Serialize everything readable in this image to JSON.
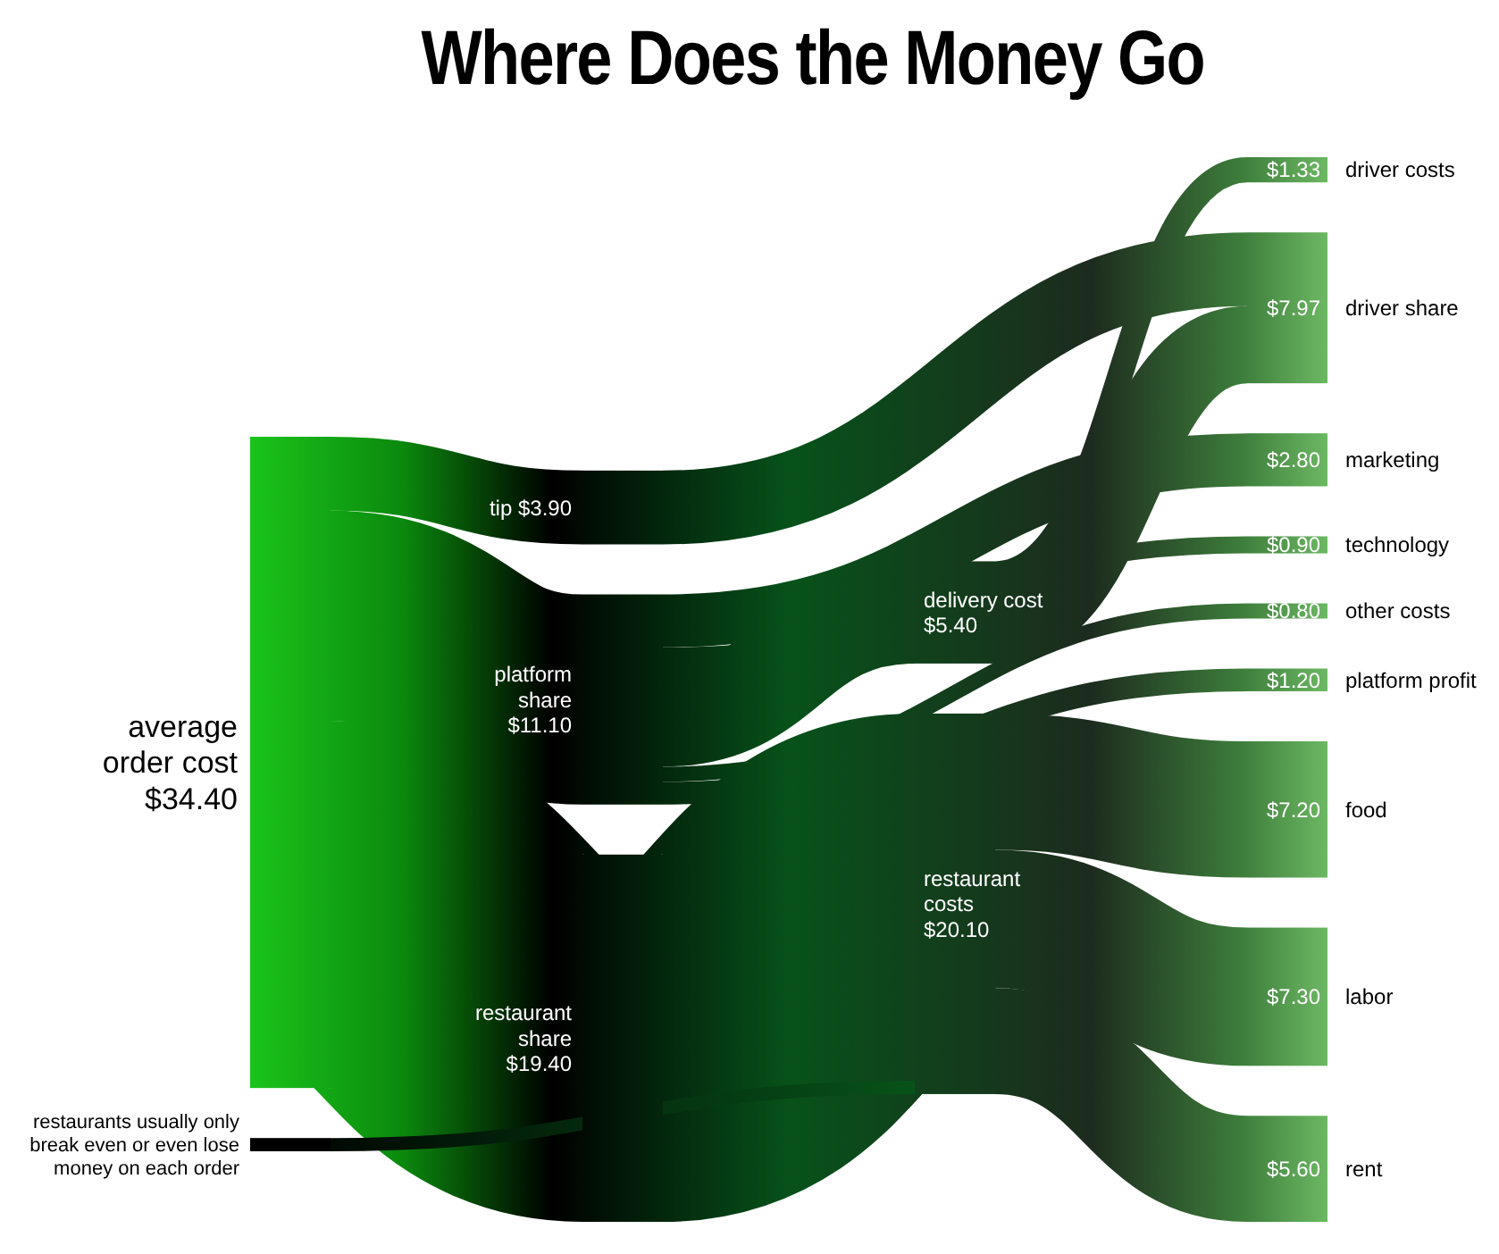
{
  "chart_data": {
    "type": "other",
    "title": "Where Does the Money Go",
    "categories": [
      "average order cost",
      "tip",
      "platform share",
      "restaurant share",
      "delivery cost",
      "restaurant costs",
      "driver costs",
      "driver share",
      "marketing",
      "technology",
      "other costs",
      "platform profit",
      "food",
      "labor",
      "rent"
    ],
    "values": [
      34.4,
      3.9,
      11.1,
      19.4,
      5.4,
      20.1,
      1.33,
      7.97,
      2.8,
      0.9,
      0.8,
      1.2,
      7.2,
      7.3,
      5.6
    ],
    "value_labels": [
      "$34.40",
      "$3.90",
      "$11.10",
      "$19.40",
      "$5.40",
      "$20.10",
      "$1.33",
      "$7.97",
      "$2.80",
      "$0.90",
      "$0.80",
      "$1.20",
      "$7.20",
      "$7.30",
      "$5.60"
    ],
    "annotations": [
      "restaurants usually only break even or even lose money on each order"
    ]
  }
}
